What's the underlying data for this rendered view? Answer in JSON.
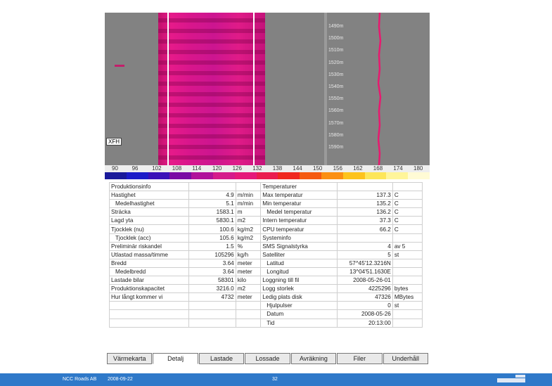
{
  "footer": {
    "company": "NCC Roads AB",
    "date": "2008-09-22",
    "page": "32"
  },
  "thermal": {
    "distance_marks": [
      "1490m",
      "1500m",
      "1510m",
      "1520m",
      "1530m",
      "1540m",
      "1550m",
      "1560m",
      "1570m",
      "1580m",
      "1590m"
    ],
    "overlay_label": "XFH"
  },
  "scale": {
    "ticks": [
      "90",
      "96",
      "102",
      "108",
      "114",
      "120",
      "126",
      "132",
      "138",
      "144",
      "150",
      "156",
      "162",
      "168",
      "174",
      "180"
    ],
    "colors": [
      "#1a1a9a",
      "#1c1cc8",
      "#3a10b8",
      "#7a0aa4",
      "#b0109a",
      "#d51a8b",
      "#e5197a",
      "#ea1d4f",
      "#f0271e",
      "#f55a10",
      "#fb8f12",
      "#fdc31d",
      "#fde65a",
      "#fff59a",
      "#fffbd5"
    ]
  },
  "table_left": [
    [
      "Produktionsinfo",
      "",
      ""
    ],
    [
      "Hastighet",
      "4.9",
      "m/min"
    ],
    [
      "Medelhastighet",
      "5.1",
      "m/min"
    ],
    [
      "Sträcka",
      "1583.1",
      "m"
    ],
    [
      "Lagd yta",
      "5830.1",
      "m2"
    ],
    [
      "Tjocklek (nu)",
      "100.6",
      "kg/m2"
    ],
    [
      "Tjocklek (acc)",
      "105.6",
      "kg/m2"
    ],
    [
      "Preliminär riskandel",
      "1.5",
      "%"
    ],
    [
      "Utlastad massa/timme",
      "105296",
      "kg/h"
    ],
    [
      "Bredd",
      "3.64",
      "meter"
    ],
    [
      "Medelbredd",
      "3.64",
      "meter"
    ],
    [
      "Lastade bilar",
      "58301",
      "kilo"
    ],
    [
      "Produktionskapacitet",
      "3216.0",
      "m2"
    ],
    [
      "Hur långt kommer vi",
      "4732",
      "meter"
    ],
    [
      "",
      "",
      ""
    ],
    [
      "",
      "",
      ""
    ],
    [
      "",
      "",
      ""
    ]
  ],
  "table_right": [
    [
      "Temperaturer",
      "",
      ""
    ],
    [
      "Max temperatur",
      "137.3",
      "C"
    ],
    [
      "Min temperatur",
      "135.2",
      "C"
    ],
    [
      "Medel temperatur",
      "136.2",
      "C"
    ],
    [
      "Intern temperatur",
      "37.3",
      "C"
    ],
    [
      "CPU temperatur",
      "66.2",
      "C"
    ],
    [
      "Systeminfo",
      "",
      ""
    ],
    [
      "SMS Signalstyrka",
      "4",
      "av 5"
    ],
    [
      "Satelliter",
      "5",
      "st"
    ],
    [
      "Latitud",
      "57^45'12.3216N",
      ""
    ],
    [
      "Longitud",
      "13^04'51.1630E",
      ""
    ],
    [
      "Loggning till fil",
      "2008-05-26-01",
      ""
    ],
    [
      "Logg storlek",
      "4225296",
      "bytes"
    ],
    [
      "Ledig plats disk",
      "47326",
      "MBytes"
    ],
    [
      "Hjulpulser",
      "0",
      "st"
    ],
    [
      "Datum",
      "2008-05-26",
      ""
    ],
    [
      "Tid",
      "20:13:00",
      ""
    ]
  ],
  "indent_left": [
    2,
    6,
    10
  ],
  "indent_right": [
    3,
    9,
    10,
    14,
    15,
    16
  ],
  "tabs": [
    "Värmekarta",
    "Detalj",
    "Lastade",
    "Lossade",
    "Avräkning",
    "Filer",
    "Underhåll"
  ],
  "active_tab": "Detalj"
}
